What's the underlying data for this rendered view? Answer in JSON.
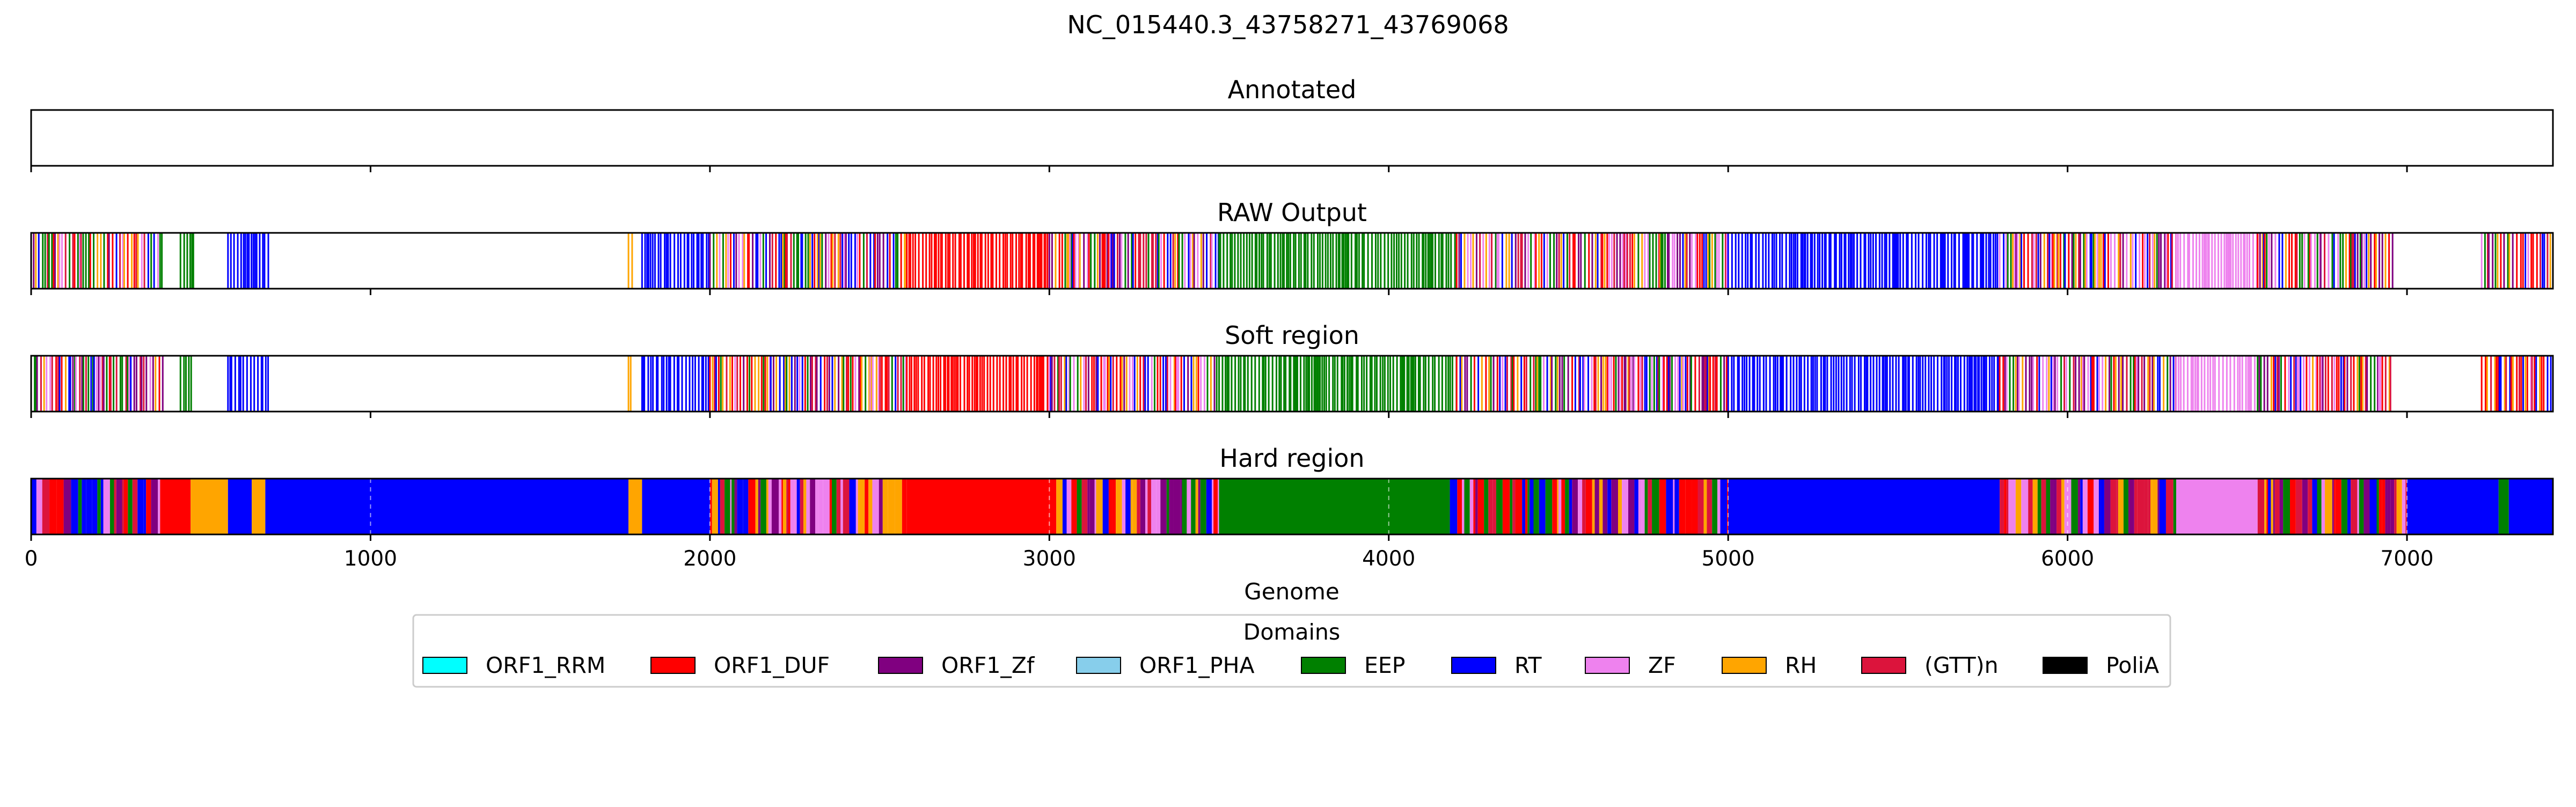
{
  "chart_data": {
    "type": "bar",
    "title": "NC_015440.3_43758271_43769068",
    "xlabel": "Genome",
    "xlim": [
      0,
      7430
    ],
    "xticks": [
      0,
      1000,
      2000,
      3000,
      4000,
      5000,
      6000,
      7000
    ],
    "xtick_labels": [
      "0",
      "1000",
      "2000",
      "3000",
      "4000",
      "5000",
      "6000",
      "7000"
    ],
    "legend": {
      "title": "Domains",
      "placement": "bottom-center",
      "entries": [
        {
          "label": "ORF1_RRM",
          "color": "#00ffff"
        },
        {
          "label": "ORF1_DUF",
          "color": "#ff0000"
        },
        {
          "label": "ORF1_Zf",
          "color": "#800080"
        },
        {
          "label": "ORF1_PHA",
          "color": "#87ceeb"
        },
        {
          "label": "EEP",
          "color": "#008000"
        },
        {
          "label": "RT",
          "color": "#0000ff"
        },
        {
          "label": "ZF",
          "color": "#ee82ee"
        },
        {
          "label": "RH",
          "color": "#ffa500"
        },
        {
          "label": "(GTT)n",
          "color": "#dc143c"
        },
        {
          "label": "PoliA",
          "color": "#000000"
        }
      ]
    },
    "panels": [
      {
        "title": "Annotated",
        "style": "none",
        "segments": []
      },
      {
        "title": "RAW Output",
        "style": "lines",
        "segments": [
          {
            "start": 0,
            "end": 390,
            "domain": "mixed"
          },
          {
            "start": 440,
            "end": 480,
            "domain": "EEP"
          },
          {
            "start": 580,
            "end": 700,
            "domain": "RT"
          },
          {
            "start": 1760,
            "end": 1775,
            "domain": "RH"
          },
          {
            "start": 1800,
            "end": 2000,
            "domain": "RT"
          },
          {
            "start": 2000,
            "end": 2580,
            "domain": "mixed"
          },
          {
            "start": 2580,
            "end": 3000,
            "domain": "ORF1_DUF"
          },
          {
            "start": 3000,
            "end": 3500,
            "domain": "mixed"
          },
          {
            "start": 3500,
            "end": 4200,
            "domain": "EEP"
          },
          {
            "start": 4200,
            "end": 5000,
            "domain": "mixed"
          },
          {
            "start": 5000,
            "end": 5800,
            "domain": "RT"
          },
          {
            "start": 5800,
            "end": 6320,
            "domain": "mixed"
          },
          {
            "start": 6320,
            "end": 6560,
            "domain": "ZF"
          },
          {
            "start": 6560,
            "end": 6960,
            "domain": "mixed"
          },
          {
            "start": 7220,
            "end": 7430,
            "domain": "mixed"
          }
        ]
      },
      {
        "title": "Soft region",
        "style": "lines",
        "segments": [
          {
            "start": 0,
            "end": 390,
            "domain": "mixed"
          },
          {
            "start": 440,
            "end": 480,
            "domain": "EEP"
          },
          {
            "start": 580,
            "end": 700,
            "domain": "RT"
          },
          {
            "start": 1760,
            "end": 1775,
            "domain": "RH"
          },
          {
            "start": 1800,
            "end": 2000,
            "domain": "RT"
          },
          {
            "start": 2000,
            "end": 2580,
            "domain": "mixed"
          },
          {
            "start": 2580,
            "end": 3000,
            "domain": "ORF1_DUF"
          },
          {
            "start": 3000,
            "end": 3500,
            "domain": "mixed"
          },
          {
            "start": 3500,
            "end": 4200,
            "domain": "EEP"
          },
          {
            "start": 4200,
            "end": 5000,
            "domain": "mixed"
          },
          {
            "start": 5000,
            "end": 5800,
            "domain": "RT"
          },
          {
            "start": 5800,
            "end": 6320,
            "domain": "mixed"
          },
          {
            "start": 6320,
            "end": 6560,
            "domain": "ZF"
          },
          {
            "start": 6560,
            "end": 6960,
            "domain": "mixed"
          },
          {
            "start": 7220,
            "end": 7430,
            "domain": "mixed"
          }
        ]
      },
      {
        "title": "Hard region",
        "style": "solid",
        "segments": [
          {
            "start": 0,
            "end": 380,
            "domain": "mixed"
          },
          {
            "start": 380,
            "end": 470,
            "domain": "ORF1_DUF"
          },
          {
            "start": 470,
            "end": 580,
            "domain": "RH"
          },
          {
            "start": 580,
            "end": 650,
            "domain": "RT"
          },
          {
            "start": 650,
            "end": 690,
            "domain": "RH"
          },
          {
            "start": 690,
            "end": 1760,
            "domain": "RT"
          },
          {
            "start": 1760,
            "end": 1800,
            "domain": "RH"
          },
          {
            "start": 1800,
            "end": 2000,
            "domain": "RT"
          },
          {
            "start": 2000,
            "end": 2580,
            "domain": "mixed"
          },
          {
            "start": 2580,
            "end": 3000,
            "domain": "ORF1_DUF"
          },
          {
            "start": 3000,
            "end": 3500,
            "domain": "mixed"
          },
          {
            "start": 3500,
            "end": 4180,
            "domain": "EEP"
          },
          {
            "start": 4180,
            "end": 5000,
            "domain": "mixed"
          },
          {
            "start": 5000,
            "end": 5800,
            "domain": "RT"
          },
          {
            "start": 5800,
            "end": 6320,
            "domain": "mixed"
          },
          {
            "start": 6320,
            "end": 6560,
            "domain": "ZF"
          },
          {
            "start": 6560,
            "end": 7000,
            "domain": "mixed"
          },
          {
            "start": 7000,
            "end": 7270,
            "domain": "RT"
          },
          {
            "start": 7270,
            "end": 7300,
            "domain": "EEP"
          },
          {
            "start": 7300,
            "end": 7430,
            "domain": "RT"
          }
        ]
      }
    ]
  }
}
